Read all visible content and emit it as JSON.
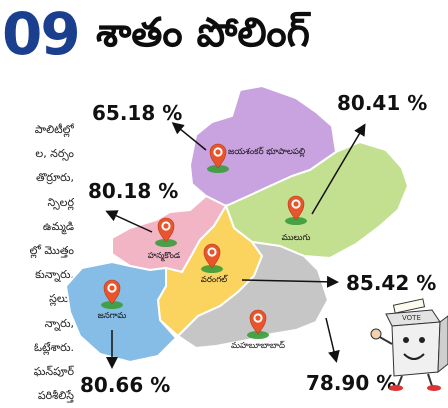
{
  "headline": {
    "number": ".09",
    "text": "శాతం పోలింగ్"
  },
  "article_lines": [
    "పాలిటీల్లో",
    "ల, నర్సం",
    "తొర్రూరు,",
    "న్సిలర్ల",
    "ఉమ్మడి",
    "ల్లో మొత్తం",
    "కున్నారు.",
    "స్లలుం",
    "న్నారు,",
    "ఓట్లేశారు.",
    "ఘన్‌పూర్",
    "పరిశీలిస్తే"
  ],
  "districts": [
    {
      "name": "జయశంకర్ భూపాలపల్లి",
      "turnout": "65.18 %",
      "color": "#c9a2e0"
    },
    {
      "name": "ములుగు",
      "turnout": "80.41 %",
      "color": "#c2e08f"
    },
    {
      "name": "హన్మకొండ",
      "turnout": "80.18 %",
      "color": "#f2b5c5"
    },
    {
      "name": "వరంగల్",
      "turnout": "85.42 %",
      "color": "#fbd35f"
    },
    {
      "name": "జనగామ",
      "turnout": "80.66 %",
      "color": "#86bde6"
    },
    {
      "name": "మహబూబాబాద్",
      "turnout": "78.90 %",
      "color": "#c6c6c6"
    }
  ],
  "ballot_box_label": "VOTE"
}
